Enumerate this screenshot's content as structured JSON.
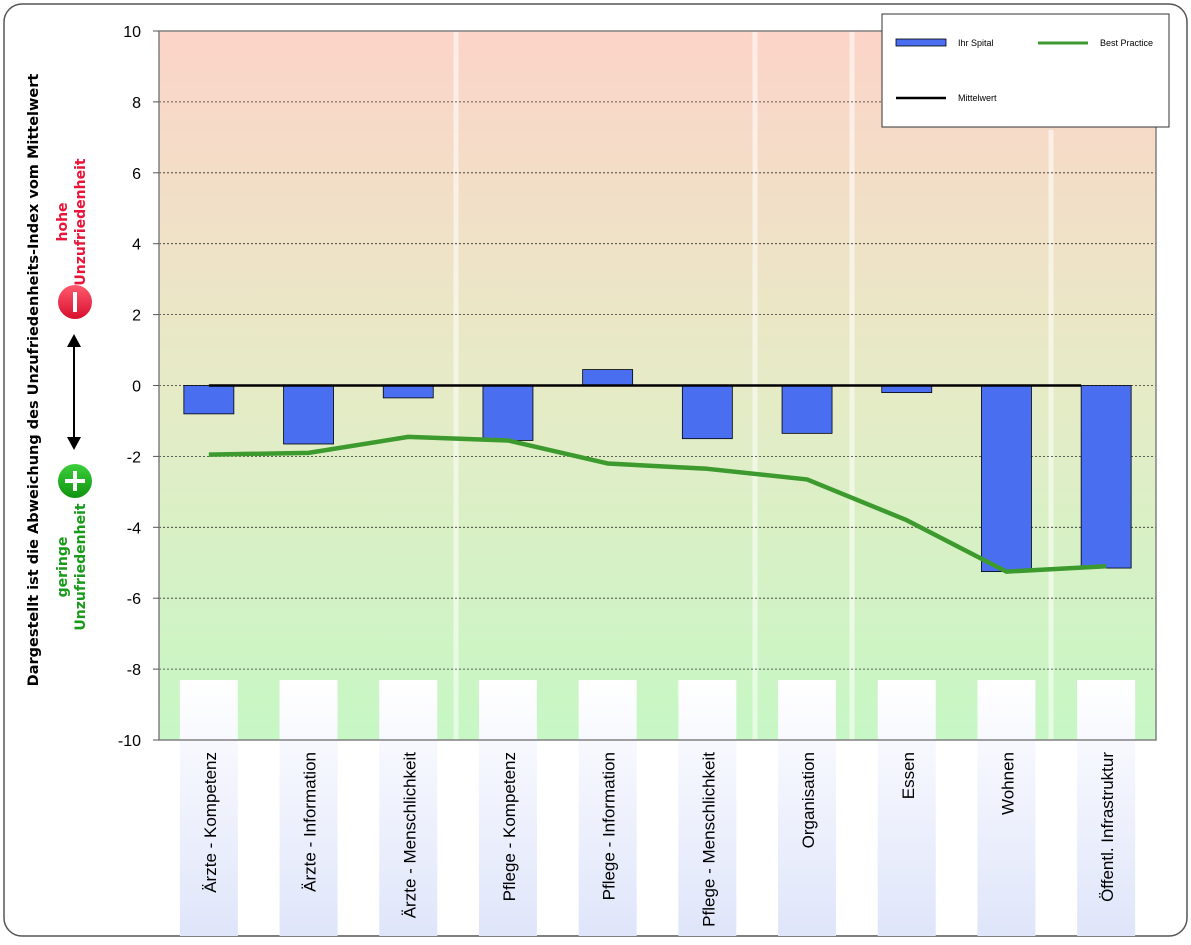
{
  "y_axis_title": "Dargestellt ist die Abweichung des Unzufriedenheits-Index vom Mittelwert",
  "indicator": {
    "high_line1": "hohe",
    "high_line2": "Unzufriedenheit",
    "low_line1": "geringe",
    "low_line2": "Unzufriedenheit",
    "minus_symbol": "−",
    "plus_symbol": "+",
    "high_color": "#e8153a",
    "low_color": "#1a9a1a"
  },
  "legend": {
    "bar_label": "Ihr Spital",
    "line_label": "Best Practice",
    "mean_label": "Mittelwert"
  },
  "colors": {
    "bar": "#4a6ef0",
    "best_practice": "#3c9a2e",
    "mean": "#000000",
    "top_band": "#fcd4c8",
    "bottom_band": "#c6f7c4"
  },
  "chart_data": {
    "type": "bar",
    "categories": [
      "Ärzte - Kompetenz",
      "Ärzte - Information",
      "Ärzte - Menschlichkeit",
      "Pflege - Kompetenz",
      "Pflege - Information",
      "Pflege - Menschlichkeit",
      "Organisation",
      "Essen",
      "Wohnen",
      "Öffentl. Infrastruktur"
    ],
    "series": [
      {
        "name": "Ihr Spital",
        "type": "bar",
        "values": [
          -0.8,
          -1.65,
          -0.35,
          -1.55,
          0.45,
          -1.5,
          -1.35,
          -0.2,
          -5.25,
          -5.15
        ]
      },
      {
        "name": "Best Practice",
        "type": "line",
        "values": [
          -1.95,
          -1.9,
          -1.45,
          -1.55,
          -2.2,
          -2.35,
          -2.65,
          -3.8,
          -5.25,
          -5.1
        ]
      },
      {
        "name": "Mittelwert",
        "type": "line",
        "values": [
          0,
          0,
          0,
          0,
          0,
          0,
          0,
          0,
          0,
          0
        ]
      }
    ],
    "ylim": [
      -10,
      10
    ],
    "yticks": [
      "10",
      "8",
      "6",
      "4",
      "2",
      "0",
      "-2",
      "-4",
      "-6",
      "-8",
      "-10"
    ],
    "ytick_values": [
      10,
      8,
      6,
      4,
      2,
      0,
      -2,
      -4,
      -6,
      -8,
      -10
    ],
    "grid": true,
    "legend_position": "top-right",
    "xlabel": "",
    "ylabel": "Dargestellt ist die Abweichung des Unzufriedenheits-Index vom Mittelwert"
  }
}
